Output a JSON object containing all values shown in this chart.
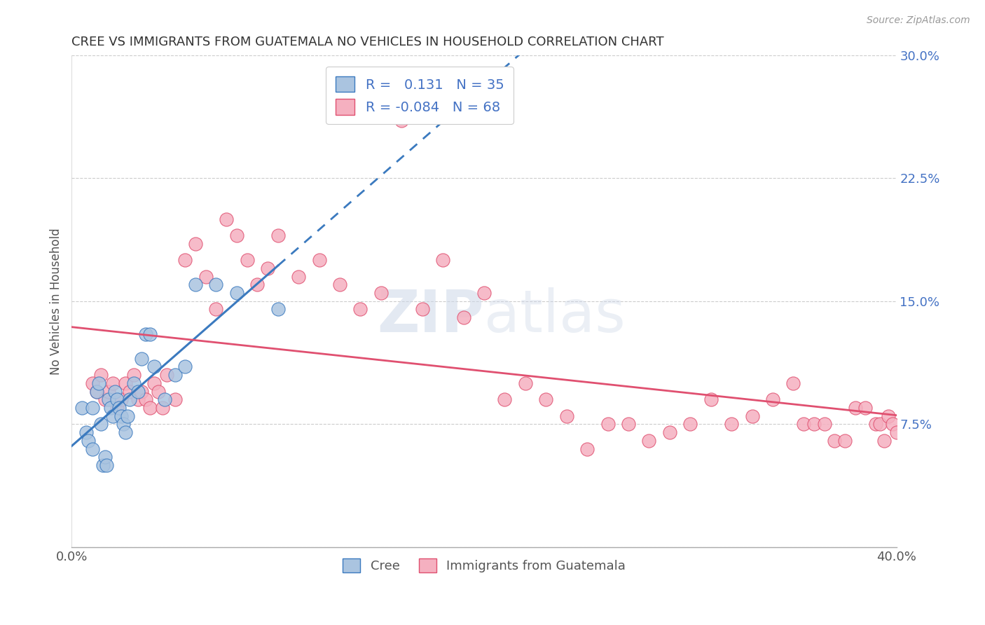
{
  "title": "CREE VS IMMIGRANTS FROM GUATEMALA NO VEHICLES IN HOUSEHOLD CORRELATION CHART",
  "source": "Source: ZipAtlas.com",
  "ylabel": "No Vehicles in Household",
  "xlabel_cree": "Cree",
  "xlabel_guatemala": "Immigrants from Guatemala",
  "watermark": "ZIPatlas",
  "legend_r_cree_val": "0.131",
  "legend_n_cree": "N = 35",
  "legend_r_guat": "-0.084",
  "legend_n_guat": "N = 68",
  "xmin": 0.0,
  "xmax": 0.4,
  "ymin": 0.0,
  "ymax": 0.3,
  "color_cree": "#aac4e0",
  "color_cree_line": "#3b7abf",
  "color_guat": "#f5b0c0",
  "color_guat_line": "#e05070",
  "cree_x": [
    0.005,
    0.007,
    0.008,
    0.01,
    0.01,
    0.012,
    0.013,
    0.014,
    0.015,
    0.016,
    0.017,
    0.018,
    0.019,
    0.02,
    0.021,
    0.022,
    0.023,
    0.024,
    0.025,
    0.026,
    0.027,
    0.028,
    0.03,
    0.032,
    0.034,
    0.036,
    0.038,
    0.04,
    0.045,
    0.05,
    0.055,
    0.06,
    0.07,
    0.08,
    0.1
  ],
  "cree_y": [
    0.085,
    0.07,
    0.065,
    0.06,
    0.085,
    0.095,
    0.1,
    0.075,
    0.05,
    0.055,
    0.05,
    0.09,
    0.085,
    0.08,
    0.095,
    0.09,
    0.085,
    0.08,
    0.075,
    0.07,
    0.08,
    0.09,
    0.1,
    0.095,
    0.115,
    0.13,
    0.13,
    0.11,
    0.09,
    0.105,
    0.11,
    0.16,
    0.16,
    0.155,
    0.145
  ],
  "guat_x": [
    0.01,
    0.012,
    0.014,
    0.016,
    0.018,
    0.02,
    0.022,
    0.024,
    0.026,
    0.028,
    0.03,
    0.032,
    0.034,
    0.036,
    0.038,
    0.04,
    0.042,
    0.044,
    0.046,
    0.05,
    0.055,
    0.06,
    0.065,
    0.07,
    0.075,
    0.08,
    0.085,
    0.09,
    0.095,
    0.1,
    0.11,
    0.12,
    0.13,
    0.14,
    0.15,
    0.16,
    0.17,
    0.18,
    0.19,
    0.2,
    0.21,
    0.22,
    0.23,
    0.24,
    0.25,
    0.26,
    0.27,
    0.28,
    0.29,
    0.3,
    0.31,
    0.32,
    0.33,
    0.34,
    0.35,
    0.355,
    0.36,
    0.365,
    0.37,
    0.375,
    0.38,
    0.385,
    0.39,
    0.392,
    0.394,
    0.396,
    0.398,
    0.4
  ],
  "guat_y": [
    0.1,
    0.095,
    0.105,
    0.09,
    0.095,
    0.1,
    0.085,
    0.09,
    0.1,
    0.095,
    0.105,
    0.09,
    0.095,
    0.09,
    0.085,
    0.1,
    0.095,
    0.085,
    0.105,
    0.09,
    0.175,
    0.185,
    0.165,
    0.145,
    0.2,
    0.19,
    0.175,
    0.16,
    0.17,
    0.19,
    0.165,
    0.175,
    0.16,
    0.145,
    0.155,
    0.26,
    0.145,
    0.175,
    0.14,
    0.155,
    0.09,
    0.1,
    0.09,
    0.08,
    0.06,
    0.075,
    0.075,
    0.065,
    0.07,
    0.075,
    0.09,
    0.075,
    0.08,
    0.09,
    0.1,
    0.075,
    0.075,
    0.075,
    0.065,
    0.065,
    0.085,
    0.085,
    0.075,
    0.075,
    0.065,
    0.08,
    0.075,
    0.07
  ]
}
